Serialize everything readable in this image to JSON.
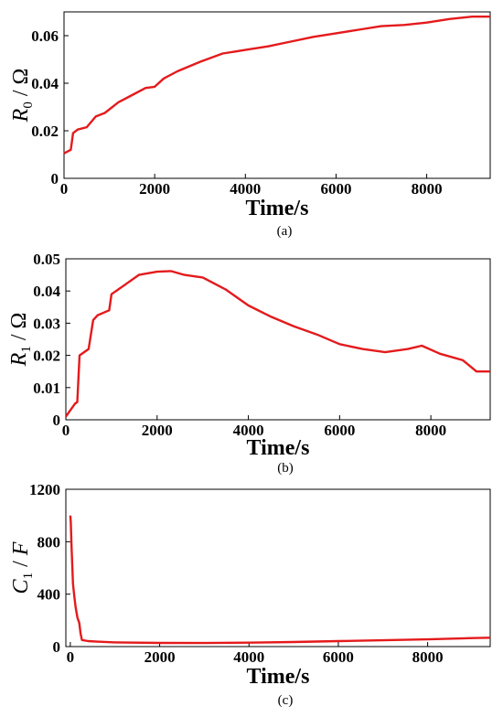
{
  "chart_data": [
    {
      "type": "line",
      "caption": "(a)",
      "xlabel": "Time/s",
      "ylabel_var": "R",
      "ylabel_sub": "0",
      "ylabel_unit": "Ω",
      "xlim": [
        0,
        9400
      ],
      "ylim": [
        0,
        0.07
      ],
      "xticks": [
        "0",
        "2000",
        "4000",
        "6000",
        "8000"
      ],
      "xtick_values": [
        0,
        2000,
        4000,
        6000,
        8000
      ],
      "yticks": [
        "0",
        "0.02",
        "0.04",
        "0.06"
      ],
      "ytick_values": [
        0,
        0.02,
        0.04,
        0.06
      ],
      "color": "#e41a1c",
      "series": [
        {
          "x": [
            0,
            150,
            200,
            300,
            500,
            700,
            900,
            1200,
            1500,
            1800,
            2000,
            2200,
            2500,
            3000,
            3500,
            4000,
            4500,
            5000,
            5500,
            6000,
            6500,
            7000,
            7500,
            8000,
            8500,
            9000,
            9400
          ],
          "values": [
            0.0105,
            0.012,
            0.019,
            0.0205,
            0.0215,
            0.026,
            0.0275,
            0.032,
            0.035,
            0.038,
            0.0385,
            0.042,
            0.045,
            0.049,
            0.0525,
            0.054,
            0.0555,
            0.0575,
            0.0595,
            0.061,
            0.0625,
            0.064,
            0.0645,
            0.0655,
            0.067,
            0.068,
            0.068
          ]
        }
      ]
    },
    {
      "type": "line",
      "caption": "(b)",
      "xlabel": "Time/s",
      "ylabel_var": "R",
      "ylabel_sub": "1",
      "ylabel_unit": "Ω",
      "xlim": [
        0,
        9300
      ],
      "ylim": [
        0,
        0.05
      ],
      "xticks": [
        "0",
        "2000",
        "4000",
        "6000",
        "8000"
      ],
      "xtick_values": [
        0,
        2000,
        4000,
        6000,
        8000
      ],
      "yticks": [
        "0",
        "0.01",
        "0.02",
        "0.03",
        "0.04",
        "0.05"
      ],
      "ytick_values": [
        0,
        0.01,
        0.02,
        0.03,
        0.04,
        0.05
      ],
      "color": "#e41a1c",
      "series": [
        {
          "x": [
            0,
            100,
            200,
            250,
            300,
            500,
            600,
            700,
            950,
            1000,
            1300,
            1600,
            2000,
            2300,
            2600,
            3000,
            3500,
            4000,
            4500,
            5000,
            5500,
            6000,
            6500,
            7000,
            7500,
            7800,
            8200,
            8700,
            9000,
            9300
          ],
          "values": [
            0.001,
            0.003,
            0.005,
            0.0055,
            0.02,
            0.022,
            0.031,
            0.0325,
            0.034,
            0.039,
            0.042,
            0.045,
            0.046,
            0.0462,
            0.045,
            0.0442,
            0.0405,
            0.0355,
            0.032,
            0.029,
            0.0265,
            0.0235,
            0.022,
            0.021,
            0.022,
            0.023,
            0.0205,
            0.0185,
            0.015,
            0.015
          ]
        }
      ]
    },
    {
      "type": "line",
      "caption": "(c)",
      "xlabel": "Time/s",
      "ylabel_var": "C",
      "ylabel_sub": "1",
      "ylabel_unit": "F",
      "xlim": [
        -100,
        9400
      ],
      "ylim": [
        0,
        1200
      ],
      "xticks": [
        "0",
        "2000",
        "4000",
        "6000",
        "8000"
      ],
      "xtick_values": [
        0,
        2000,
        4000,
        6000,
        8000
      ],
      "yticks": [
        "0",
        "400",
        "800",
        "1200"
      ],
      "ytick_values": [
        0,
        400,
        800,
        1200
      ],
      "color": "#e41a1c",
      "series": [
        {
          "x": [
            0,
            10,
            30,
            60,
            90,
            120,
            160,
            200,
            230,
            260,
            400,
            600,
            1000,
            2000,
            3000,
            4000,
            5000,
            6000,
            7000,
            8000,
            9000,
            9400
          ],
          "values": [
            1000,
            950,
            750,
            480,
            380,
            300,
            220,
            180,
            100,
            50,
            42,
            38,
            32,
            28,
            27,
            30,
            35,
            42,
            48,
            55,
            65,
            68
          ]
        }
      ]
    }
  ]
}
